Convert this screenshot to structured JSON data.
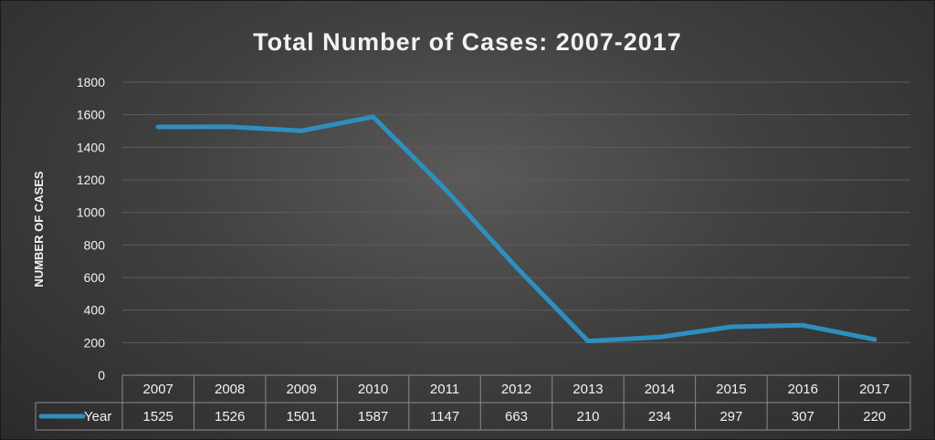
{
  "chart_data": {
    "type": "line",
    "title": "Total Number of Cases: 2007-2017",
    "xlabel": "",
    "ylabel": "NUMBER OF CASES",
    "ylim": [
      0,
      1800
    ],
    "yticks": [
      0,
      200,
      400,
      600,
      800,
      1000,
      1200,
      1400,
      1600,
      1800
    ],
    "categories": [
      "2007",
      "2008",
      "2009",
      "2010",
      "2011",
      "2012",
      "2013",
      "2014",
      "2015",
      "2016",
      "2017"
    ],
    "series": [
      {
        "name": "Year",
        "values": [
          1525,
          1526,
          1501,
          1587,
          1147,
          663,
          210,
          234,
          297,
          307,
          220
        ],
        "color": "#2e8fbf"
      }
    ],
    "grid": true,
    "legend": "data-table-left",
    "colors": {
      "background": "#404040",
      "gridline": "#5c5c5c",
      "text": "#f2f2f2",
      "table_border": "#8c8c8c"
    }
  }
}
